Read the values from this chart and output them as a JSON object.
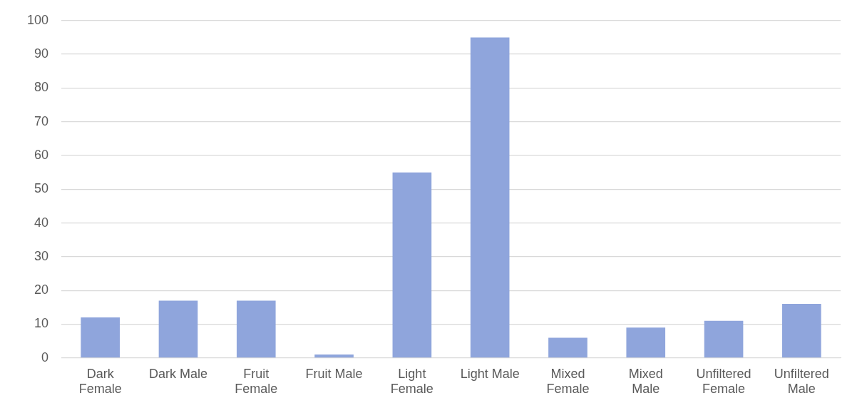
{
  "chart_data": {
    "type": "bar",
    "categories": [
      "Dark Female",
      "Dark Male",
      "Fruit Female",
      "Fruit Male",
      "Light Female",
      "Light Male",
      "Mixed Female",
      "Mixed Male",
      "Unfiltered Female",
      "Unfiltered Male"
    ],
    "values": [
      12,
      17,
      17,
      1,
      55,
      95,
      6,
      9,
      11,
      16
    ],
    "color": "#8fa5dc",
    "ylim": [
      0,
      100
    ],
    "yticks": [
      0,
      10,
      20,
      30,
      40,
      50,
      60,
      70,
      80,
      90,
      100
    ],
    "grid": "y",
    "legend": false
  }
}
